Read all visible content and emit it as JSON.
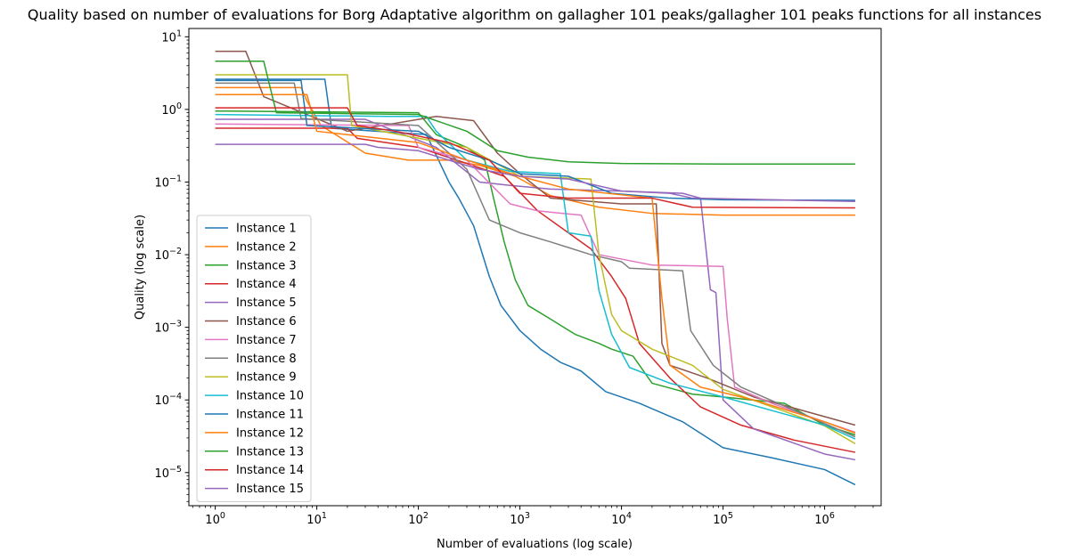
{
  "chart_data": {
    "type": "line",
    "title": "Quality based on number of evaluations for Borg Adaptative algorithm on gallagher 101 peaks/gallagher 101 peaks functions for all instances",
    "xlabel": "Number of evaluations (log scale)",
    "ylabel": "Quality (log scale)",
    "xscale": "log",
    "yscale": "log",
    "xlim": [
      0.55,
      3600000
    ],
    "ylim": [
      3.5e-06,
      13
    ],
    "x_ticks": [
      {
        "value": 1,
        "base": "10",
        "exp": "0"
      },
      {
        "value": 10,
        "base": "10",
        "exp": "1"
      },
      {
        "value": 100,
        "base": "10",
        "exp": "2"
      },
      {
        "value": 1000,
        "base": "10",
        "exp": "3"
      },
      {
        "value": 10000,
        "base": "10",
        "exp": "4"
      },
      {
        "value": 100000,
        "base": "10",
        "exp": "5"
      },
      {
        "value": 1000000,
        "base": "10",
        "exp": "6"
      }
    ],
    "y_ticks": [
      {
        "value": 1e-05,
        "base": "10",
        "exp": "−5"
      },
      {
        "value": 0.0001,
        "base": "10",
        "exp": "−4"
      },
      {
        "value": 0.001,
        "base": "10",
        "exp": "−3"
      },
      {
        "value": 0.01,
        "base": "10",
        "exp": "−2"
      },
      {
        "value": 0.1,
        "base": "10",
        "exp": "−1"
      },
      {
        "value": 1,
        "base": "10",
        "exp": "0"
      },
      {
        "value": 10,
        "base": "10",
        "exp": "1"
      }
    ],
    "grid": false,
    "legend_position": "lower-left",
    "series": [
      {
        "name": "Instance 1",
        "color": "#1f77b4",
        "points": [
          [
            1,
            2.6
          ],
          [
            12,
            2.6
          ],
          [
            14,
            0.55
          ],
          [
            120,
            0.45
          ],
          [
            200,
            0.1
          ],
          [
            250,
            0.06
          ],
          [
            350,
            0.025
          ],
          [
            500,
            0.005
          ],
          [
            650,
            0.002
          ],
          [
            1000,
            0.0009
          ],
          [
            1600,
            0.0005
          ],
          [
            2500,
            0.00033
          ],
          [
            4000,
            0.00025
          ],
          [
            7000,
            0.00013
          ],
          [
            15000,
            9e-05
          ],
          [
            40000,
            5e-05
          ],
          [
            100000,
            2.2e-05
          ],
          [
            300000,
            1.6e-05
          ],
          [
            1000000,
            1.1e-05
          ],
          [
            2000000,
            6.8e-06
          ]
        ]
      },
      {
        "name": "Instance 2",
        "color": "#ff7f0e",
        "points": [
          [
            1,
            2.0
          ],
          [
            7,
            2.0
          ],
          [
            8,
            1.3
          ],
          [
            11,
            0.6
          ],
          [
            30,
            0.25
          ],
          [
            80,
            0.2
          ],
          [
            200,
            0.2
          ],
          [
            400,
            0.17
          ],
          [
            900,
            0.12
          ],
          [
            2000,
            0.065
          ],
          [
            6000,
            0.045
          ],
          [
            20000,
            0.037
          ],
          [
            100000,
            0.035
          ],
          [
            2000000,
            0.035
          ]
        ]
      },
      {
        "name": "Instance 3",
        "color": "#2ca02c",
        "points": [
          [
            1,
            0.95
          ],
          [
            100,
            0.9
          ],
          [
            150,
            0.45
          ],
          [
            300,
            0.3
          ],
          [
            450,
            0.2
          ],
          [
            550,
            0.06
          ],
          [
            700,
            0.015
          ],
          [
            900,
            0.0045
          ],
          [
            1200,
            0.002
          ],
          [
            2000,
            0.0013
          ],
          [
            3500,
            0.0008
          ],
          [
            6000,
            0.0006
          ],
          [
            8000,
            0.0005
          ],
          [
            13000,
            0.0004
          ],
          [
            20000,
            0.00017
          ],
          [
            50000,
            0.00012
          ],
          [
            100000,
            0.00011
          ],
          [
            400000,
            9e-05
          ],
          [
            1000000,
            4.5e-05
          ],
          [
            2000000,
            3.3e-05
          ]
        ]
      },
      {
        "name": "Instance 4",
        "color": "#d62728",
        "points": [
          [
            1,
            0.55
          ],
          [
            20,
            0.55
          ],
          [
            25,
            0.4
          ],
          [
            100,
            0.3
          ],
          [
            300,
            0.18
          ],
          [
            700,
            0.12
          ],
          [
            1500,
            0.04
          ],
          [
            3000,
            0.02
          ],
          [
            5000,
            0.012
          ],
          [
            8000,
            0.005
          ],
          [
            11000,
            0.0025
          ],
          [
            15000,
            0.0006
          ],
          [
            30000,
            0.0002
          ],
          [
            60000,
            8e-05
          ],
          [
            150000,
            4.5e-05
          ],
          [
            500000,
            2.8e-05
          ],
          [
            2000000,
            1.9e-05
          ]
        ]
      },
      {
        "name": "Instance 5",
        "color": "#9467bd",
        "points": [
          [
            1,
            0.73
          ],
          [
            30,
            0.73
          ],
          [
            50,
            0.55
          ],
          [
            150,
            0.3
          ],
          [
            400,
            0.1
          ],
          [
            800,
            0.09
          ],
          [
            2000,
            0.08
          ],
          [
            10000,
            0.075
          ],
          [
            40000,
            0.07
          ],
          [
            60000,
            0.06
          ],
          [
            75000,
            0.0033
          ],
          [
            85000,
            0.003
          ],
          [
            100000,
            0.0001
          ],
          [
            200000,
            4e-05
          ],
          [
            1000000,
            1.8e-05
          ],
          [
            2000000,
            1.5e-05
          ]
        ]
      },
      {
        "name": "Instance 6",
        "color": "#8c564b",
        "points": [
          [
            1,
            6.3
          ],
          [
            2,
            6.3
          ],
          [
            3,
            1.5
          ],
          [
            20,
            0.5
          ],
          [
            150,
            0.8
          ],
          [
            350,
            0.7
          ],
          [
            600,
            0.25
          ],
          [
            1000,
            0.13
          ],
          [
            2000,
            0.06
          ],
          [
            10000,
            0.05
          ],
          [
            22000,
            0.05
          ],
          [
            25000,
            0.0006
          ],
          [
            30000,
            0.0003
          ],
          [
            70000,
            0.0002
          ],
          [
            200000,
            0.00011
          ],
          [
            2000000,
            4.5e-05
          ]
        ]
      },
      {
        "name": "Instance 7",
        "color": "#e377c2",
        "points": [
          [
            1,
            0.63
          ],
          [
            80,
            0.6
          ],
          [
            100,
            0.3
          ],
          [
            300,
            0.2
          ],
          [
            800,
            0.05
          ],
          [
            1500,
            0.04
          ],
          [
            4000,
            0.035
          ],
          [
            6000,
            0.01
          ],
          [
            20000,
            0.0072
          ],
          [
            100000,
            0.0069
          ],
          [
            110000,
            0.0013
          ],
          [
            130000,
            0.00015
          ],
          [
            300000,
            9e-05
          ],
          [
            1000000,
            5e-05
          ],
          [
            2000000,
            3.6e-05
          ]
        ]
      },
      {
        "name": "Instance 8",
        "color": "#7f7f7f",
        "points": [
          [
            1,
            2.3
          ],
          [
            6,
            2.3
          ],
          [
            7,
            0.75
          ],
          [
            100,
            0.6
          ],
          [
            300,
            0.15
          ],
          [
            500,
            0.03
          ],
          [
            1000,
            0.02
          ],
          [
            2000,
            0.015
          ],
          [
            5000,
            0.01
          ],
          [
            10000,
            0.008
          ],
          [
            12000,
            0.0065
          ],
          [
            40000,
            0.006
          ],
          [
            48000,
            0.0009
          ],
          [
            80000,
            0.0003
          ],
          [
            150000,
            0.00015
          ],
          [
            2000000,
            3.1e-05
          ]
        ]
      },
      {
        "name": "Instance 9",
        "color": "#bcbd22",
        "points": [
          [
            1,
            3.0
          ],
          [
            20,
            3.0
          ],
          [
            22,
            0.6
          ],
          [
            300,
            0.3
          ],
          [
            1000,
            0.12
          ],
          [
            5000,
            0.11
          ],
          [
            6000,
            0.01
          ],
          [
            8000,
            0.0015
          ],
          [
            10000,
            0.0009
          ],
          [
            20000,
            0.0005
          ],
          [
            50000,
            0.0003
          ],
          [
            100000,
            0.00014
          ],
          [
            1000000,
            4.4e-05
          ],
          [
            2000000,
            2.5e-05
          ]
        ]
      },
      {
        "name": "Instance 10",
        "color": "#17becf",
        "points": [
          [
            1,
            0.85
          ],
          [
            50,
            0.8
          ],
          [
            120,
            0.8
          ],
          [
            150,
            0.5
          ],
          [
            300,
            0.2
          ],
          [
            800,
            0.14
          ],
          [
            2500,
            0.13
          ],
          [
            3000,
            0.02
          ],
          [
            5000,
            0.018
          ],
          [
            6000,
            0.0032
          ],
          [
            8000,
            0.0008
          ],
          [
            12000,
            0.00028
          ],
          [
            30000,
            0.00017
          ],
          [
            100000,
            0.00011
          ],
          [
            1000000,
            4.5e-05
          ],
          [
            2000000,
            2.9e-05
          ]
        ]
      },
      {
        "name": "Instance 11",
        "color": "#1f77b4",
        "points": [
          [
            1,
            2.5
          ],
          [
            7,
            2.5
          ],
          [
            8,
            0.6
          ],
          [
            100,
            0.5
          ],
          [
            200,
            0.3
          ],
          [
            500,
            0.2
          ],
          [
            1000,
            0.13
          ],
          [
            3000,
            0.12
          ],
          [
            8000,
            0.07
          ],
          [
            30000,
            0.06
          ],
          [
            100000,
            0.057
          ],
          [
            2000000,
            0.056
          ]
        ]
      },
      {
        "name": "Instance 12",
        "color": "#ff7f0e",
        "points": [
          [
            1,
            1.6
          ],
          [
            8,
            1.6
          ],
          [
            10,
            0.5
          ],
          [
            100,
            0.35
          ],
          [
            300,
            0.2
          ],
          [
            1000,
            0.12
          ],
          [
            3000,
            0.08
          ],
          [
            20000,
            0.06
          ],
          [
            25000,
            0.0025
          ],
          [
            30000,
            0.0003
          ],
          [
            60000,
            0.00015
          ],
          [
            200000,
            0.0001
          ],
          [
            1000000,
            5e-05
          ],
          [
            2000000,
            3.5e-05
          ]
        ]
      },
      {
        "name": "Instance 13",
        "color": "#2ca02c",
        "points": [
          [
            1,
            4.6
          ],
          [
            3,
            4.6
          ],
          [
            4,
            0.9
          ],
          [
            100,
            0.85
          ],
          [
            300,
            0.5
          ],
          [
            600,
            0.27
          ],
          [
            1200,
            0.22
          ],
          [
            3000,
            0.19
          ],
          [
            10000,
            0.18
          ],
          [
            100000,
            0.177
          ],
          [
            2000000,
            0.177
          ]
        ]
      },
      {
        "name": "Instance 14",
        "color": "#d62728",
        "points": [
          [
            1,
            1.05
          ],
          [
            20,
            1.05
          ],
          [
            25,
            0.6
          ],
          [
            60,
            0.5
          ],
          [
            200,
            0.35
          ],
          [
            500,
            0.2
          ],
          [
            1000,
            0.07
          ],
          [
            3000,
            0.06
          ],
          [
            20000,
            0.06
          ],
          [
            50000,
            0.045
          ],
          [
            2000000,
            0.044
          ]
        ]
      },
      {
        "name": "Instance 15",
        "color": "#9467bd",
        "points": [
          [
            1,
            0.33
          ],
          [
            30,
            0.33
          ],
          [
            40,
            0.3
          ],
          [
            100,
            0.27
          ],
          [
            200,
            0.2
          ],
          [
            400,
            0.15
          ],
          [
            1000,
            0.12
          ],
          [
            3000,
            0.11
          ],
          [
            10000,
            0.075
          ],
          [
            30000,
            0.07
          ],
          [
            50000,
            0.06
          ],
          [
            2000000,
            0.054
          ]
        ]
      }
    ]
  }
}
